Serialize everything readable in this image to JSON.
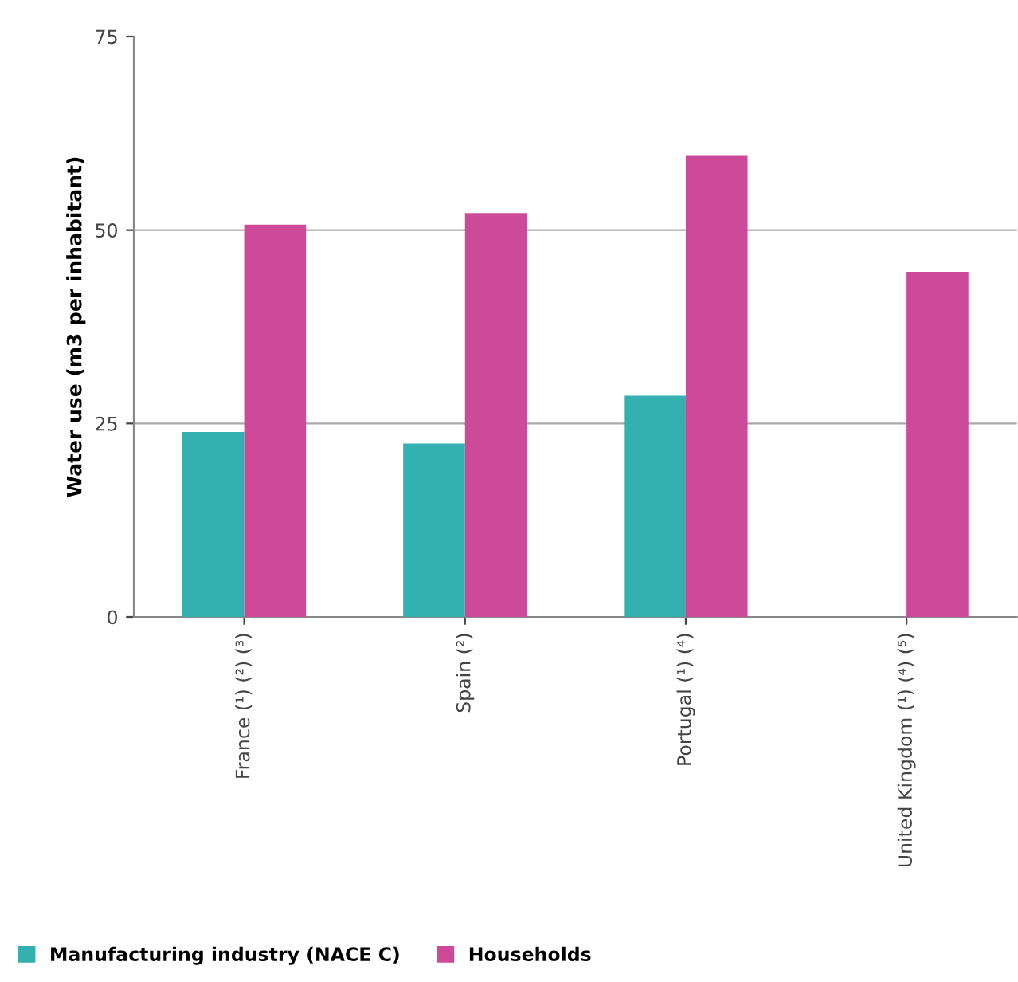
{
  "chart_data": {
    "type": "bar",
    "ylabel": "Water use (m3 per inhabitant)",
    "categories": [
      "France (¹) (²) (³)",
      "Spain (²)",
      "Portugal (¹) (⁴)",
      "United Kingdom (¹) (⁴) (⁵)"
    ],
    "series": [
      {
        "name": "Manufacturing industry (NACE C)",
        "color": "#33b0b0",
        "values": [
          23.9,
          22.4,
          28.6,
          null
        ]
      },
      {
        "name": "Households",
        "color": "#cc4a98",
        "values": [
          50.7,
          52.2,
          59.6,
          44.6
        ]
      }
    ],
    "ylim": [
      0,
      75
    ],
    "yticks": [
      0,
      25,
      50,
      75
    ],
    "grid": "y",
    "legend": "bottom"
  }
}
